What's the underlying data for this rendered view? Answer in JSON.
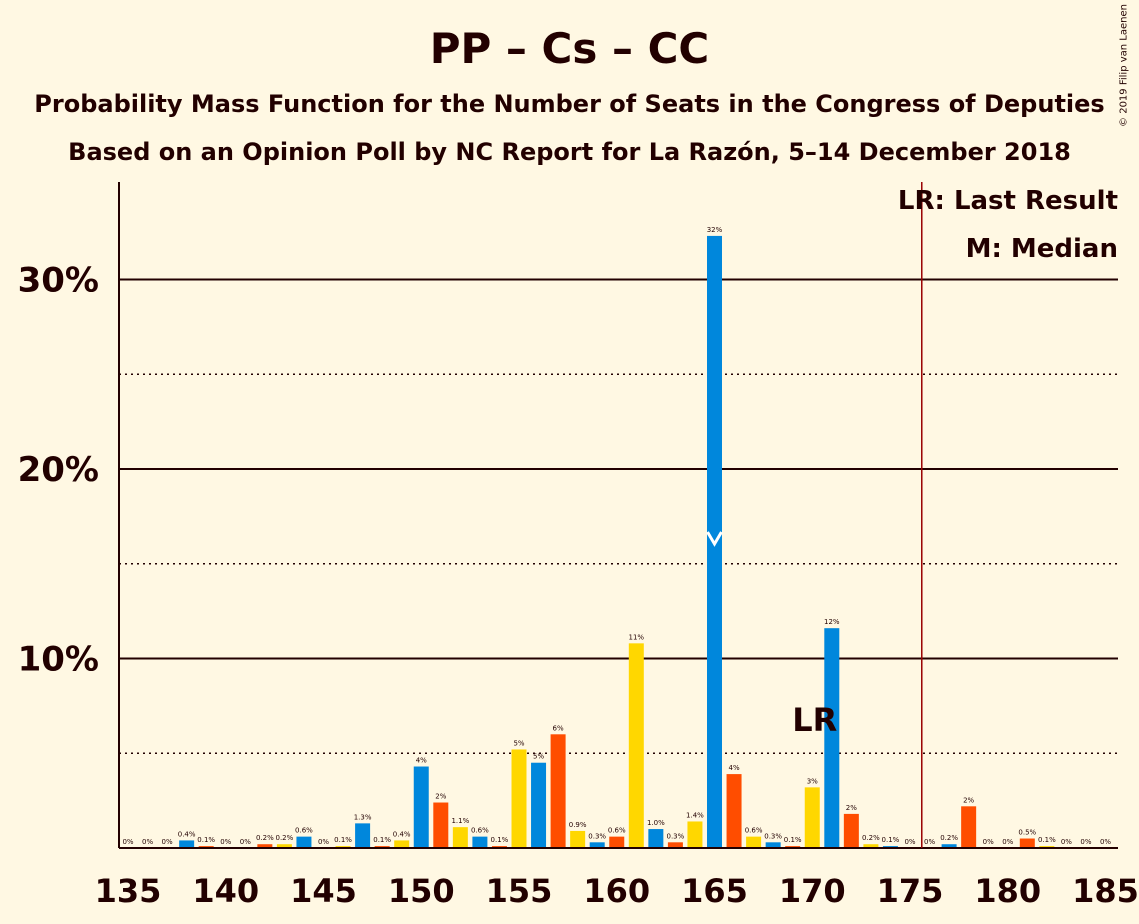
{
  "title": "PP – Cs – CC",
  "subtitle1": "Probability Mass Function for the Number of Seats in the Congress of Deputies",
  "subtitle2": "Based on an Opinion Poll by NC Report for La Razón, 5–14 December 2018",
  "copyright": "© 2019 Filip van Laenen",
  "legend": {
    "last_result": "LR: Last Result",
    "median": "M: Median"
  },
  "colors": {
    "background": "#fff8e3",
    "blue": "#0087dc",
    "orange": "#ff4d00",
    "yellow": "#ffd700",
    "majority_line": "#990000"
  },
  "chart_data": {
    "type": "bar",
    "xlabel": "",
    "ylabel": "",
    "xlim": [
      135,
      185
    ],
    "ylim": [
      0,
      35
    ],
    "x_ticks": [
      135,
      140,
      145,
      150,
      155,
      160,
      165,
      170,
      175,
      180,
      185
    ],
    "y_ticks": [
      {
        "value": 10,
        "label": "10%"
      },
      {
        "value": 20,
        "label": "20%"
      },
      {
        "value": 30,
        "label": "30%"
      }
    ],
    "dotted_gridlines": [
      5,
      15,
      25
    ],
    "majority_line": 176,
    "last_result": {
      "seat": 171,
      "label": "LR"
    },
    "median": {
      "seat": 165,
      "label": "M"
    },
    "bars": [
      {
        "seat": 135,
        "value": 0,
        "label": "0%",
        "color": "blue"
      },
      {
        "seat": 136,
        "value": 0,
        "label": "0%",
        "color": "orange"
      },
      {
        "seat": 137,
        "value": 0,
        "label": "0%",
        "color": "yellow"
      },
      {
        "seat": 138,
        "value": 0.4,
        "label": "0.4%",
        "color": "blue"
      },
      {
        "seat": 139,
        "value": 0.1,
        "label": "0.1%",
        "color": "orange"
      },
      {
        "seat": 140,
        "value": 0,
        "label": "0%",
        "color": "yellow"
      },
      {
        "seat": 141,
        "value": 0,
        "label": "0%",
        "color": "blue"
      },
      {
        "seat": 142,
        "value": 0.2,
        "label": "0.2%",
        "color": "orange"
      },
      {
        "seat": 143,
        "value": 0.2,
        "label": "0.2%",
        "color": "yellow"
      },
      {
        "seat": 144,
        "value": 0.6,
        "label": "0.6%",
        "color": "blue"
      },
      {
        "seat": 145,
        "value": 0,
        "label": "0%",
        "color": "orange"
      },
      {
        "seat": 146,
        "value": 0.1,
        "label": "0.1%",
        "color": "yellow"
      },
      {
        "seat": 147,
        "value": 1.3,
        "label": "1.3%",
        "color": "blue"
      },
      {
        "seat": 148,
        "value": 0.1,
        "label": "0.1%",
        "color": "orange"
      },
      {
        "seat": 149,
        "value": 0.4,
        "label": "0.4%",
        "color": "yellow"
      },
      {
        "seat": 150,
        "value": 4.3,
        "label": "4%",
        "color": "blue"
      },
      {
        "seat": 151,
        "value": 2.4,
        "label": "2%",
        "color": "orange"
      },
      {
        "seat": 152,
        "value": 1.1,
        "label": "1.1%",
        "color": "yellow"
      },
      {
        "seat": 153,
        "value": 0.6,
        "label": "0.6%",
        "color": "blue"
      },
      {
        "seat": 154,
        "value": 0.1,
        "label": "0.1%",
        "color": "orange"
      },
      {
        "seat": 155,
        "value": 5.2,
        "label": "5%",
        "color": "yellow"
      },
      {
        "seat": 156,
        "value": 4.5,
        "label": "5%",
        "color": "blue"
      },
      {
        "seat": 157,
        "value": 6.0,
        "label": "6%",
        "color": "orange"
      },
      {
        "seat": 158,
        "value": 0.9,
        "label": "0.9%",
        "color": "yellow"
      },
      {
        "seat": 159,
        "value": 0.3,
        "label": "0.3%",
        "color": "blue"
      },
      {
        "seat": 160,
        "value": 0.6,
        "label": "0.6%",
        "color": "orange"
      },
      {
        "seat": 161,
        "value": 10.8,
        "label": "11%",
        "color": "yellow"
      },
      {
        "seat": 162,
        "value": 1.0,
        "label": "1.0%",
        "color": "blue"
      },
      {
        "seat": 163,
        "value": 0.3,
        "label": "0.3%",
        "color": "orange"
      },
      {
        "seat": 164,
        "value": 1.4,
        "label": "1.4%",
        "color": "yellow"
      },
      {
        "seat": 165,
        "value": 32.3,
        "label": "32%",
        "color": "blue"
      },
      {
        "seat": 166,
        "value": 3.9,
        "label": "4%",
        "color": "orange"
      },
      {
        "seat": 167,
        "value": 0.6,
        "label": "0.6%",
        "color": "yellow"
      },
      {
        "seat": 168,
        "value": 0.3,
        "label": "0.3%",
        "color": "blue"
      },
      {
        "seat": 169,
        "value": 0.1,
        "label": "0.1%",
        "color": "orange"
      },
      {
        "seat": 170,
        "value": 3.2,
        "label": "3%",
        "color": "yellow"
      },
      {
        "seat": 171,
        "value": 11.6,
        "label": "12%",
        "color": "blue"
      },
      {
        "seat": 172,
        "value": 1.8,
        "label": "2%",
        "color": "orange"
      },
      {
        "seat": 173,
        "value": 0.2,
        "label": "0.2%",
        "color": "yellow"
      },
      {
        "seat": 174,
        "value": 0.1,
        "label": "0.1%",
        "color": "blue"
      },
      {
        "seat": 175,
        "value": 0,
        "label": "0%",
        "color": "orange"
      },
      {
        "seat": 176,
        "value": 0,
        "label": "0%",
        "color": "yellow"
      },
      {
        "seat": 177,
        "value": 0.2,
        "label": "0.2%",
        "color": "blue"
      },
      {
        "seat": 178,
        "value": 2.2,
        "label": "2%",
        "color": "orange"
      },
      {
        "seat": 179,
        "value": 0,
        "label": "0%",
        "color": "yellow"
      },
      {
        "seat": 180,
        "value": 0,
        "label": "0%",
        "color": "blue"
      },
      {
        "seat": 181,
        "value": 0.5,
        "label": "0.5%",
        "color": "orange"
      },
      {
        "seat": 182,
        "value": 0.1,
        "label": "0.1%",
        "color": "yellow"
      },
      {
        "seat": 183,
        "value": 0,
        "label": "0%",
        "color": "blue"
      },
      {
        "seat": 184,
        "value": 0,
        "label": "0%",
        "color": "orange"
      },
      {
        "seat": 185,
        "value": 0,
        "label": "0%",
        "color": "yellow"
      }
    ]
  }
}
